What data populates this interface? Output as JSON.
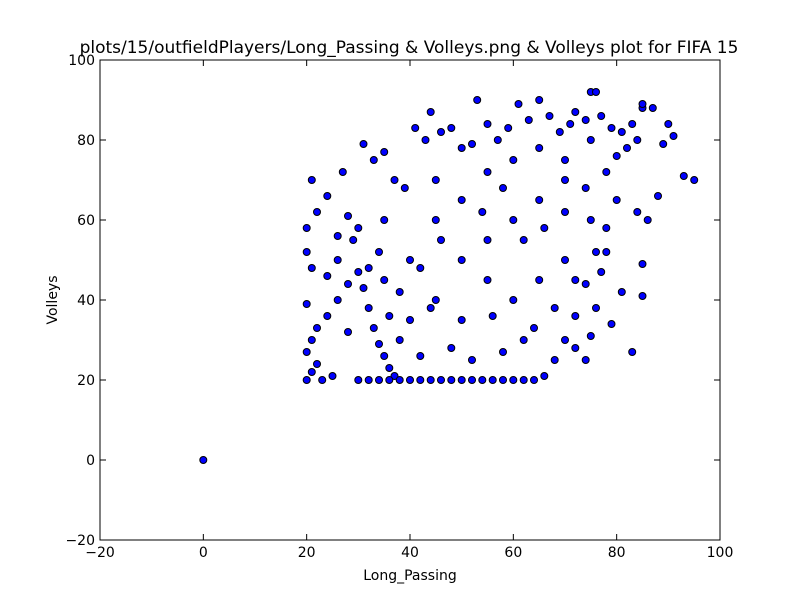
{
  "chart_data": {
    "type": "scatter",
    "title": "plots/15/outfieldPlayers/Long_Passing & Volleys.png & Volleys plot for FIFA 15",
    "xlabel": "Long_Passing",
    "ylabel": "Volleys",
    "xlim": [
      -20,
      100
    ],
    "ylim": [
      -20,
      100
    ],
    "xticks": [
      "−20",
      "0",
      "20",
      "40",
      "60",
      "80",
      "100"
    ],
    "yticks": [
      "−20",
      "0",
      "20",
      "40",
      "60",
      "80",
      "100"
    ],
    "grid": false,
    "marker_color": "#0000ff",
    "marker_edge": "#000000",
    "series": [
      {
        "points": [
          [
            0,
            0
          ],
          [
            20,
            20
          ],
          [
            21,
            22
          ],
          [
            22,
            24
          ],
          [
            20,
            27
          ],
          [
            21,
            30
          ],
          [
            22,
            33
          ],
          [
            20,
            39
          ],
          [
            21,
            48
          ],
          [
            20,
            52
          ],
          [
            20,
            58
          ],
          [
            21,
            70
          ],
          [
            22,
            62
          ],
          [
            24,
            66
          ],
          [
            23,
            20
          ],
          [
            25,
            21
          ],
          [
            26,
            40
          ],
          [
            24,
            36
          ],
          [
            27,
            72
          ],
          [
            28,
            61
          ],
          [
            29,
            55
          ],
          [
            30,
            47
          ],
          [
            31,
            43
          ],
          [
            32,
            38
          ],
          [
            33,
            33
          ],
          [
            34,
            29
          ],
          [
            35,
            26
          ],
          [
            36,
            23
          ],
          [
            37,
            21
          ],
          [
            30,
            20
          ],
          [
            32,
            20
          ],
          [
            34,
            20
          ],
          [
            36,
            20
          ],
          [
            38,
            20
          ],
          [
            40,
            20
          ],
          [
            42,
            20
          ],
          [
            44,
            20
          ],
          [
            46,
            20
          ],
          [
            48,
            20
          ],
          [
            50,
            20
          ],
          [
            52,
            20
          ],
          [
            54,
            20
          ],
          [
            56,
            20
          ],
          [
            58,
            20
          ],
          [
            60,
            20
          ],
          [
            62,
            20
          ],
          [
            64,
            20
          ],
          [
            66,
            21
          ],
          [
            31,
            79
          ],
          [
            33,
            75
          ],
          [
            35,
            77
          ],
          [
            37,
            70
          ],
          [
            39,
            68
          ],
          [
            41,
            83
          ],
          [
            43,
            80
          ],
          [
            44,
            87
          ],
          [
            46,
            82
          ],
          [
            48,
            83
          ],
          [
            50,
            78
          ],
          [
            52,
            79
          ],
          [
            53,
            90
          ],
          [
            55,
            84
          ],
          [
            57,
            80
          ],
          [
            59,
            83
          ],
          [
            61,
            89
          ],
          [
            63,
            85
          ],
          [
            65,
            90
          ],
          [
            67,
            86
          ],
          [
            69,
            82
          ],
          [
            71,
            84
          ],
          [
            72,
            87
          ],
          [
            74,
            85
          ],
          [
            75,
            92
          ],
          [
            76,
            92
          ],
          [
            77,
            86
          ],
          [
            79,
            83
          ],
          [
            81,
            82
          ],
          [
            83,
            84
          ],
          [
            85,
            88
          ],
          [
            85,
            89
          ],
          [
            87,
            88
          ],
          [
            89,
            79
          ],
          [
            90,
            84
          ],
          [
            91,
            81
          ],
          [
            93,
            71
          ],
          [
            95,
            70
          ],
          [
            88,
            66
          ],
          [
            86,
            60
          ],
          [
            84,
            62
          ],
          [
            85,
            49
          ],
          [
            85,
            41
          ],
          [
            83,
            27
          ],
          [
            81,
            42
          ],
          [
            79,
            34
          ],
          [
            78,
            52
          ],
          [
            77,
            47
          ],
          [
            76,
            38
          ],
          [
            75,
            31
          ],
          [
            74,
            25
          ],
          [
            72,
            28
          ],
          [
            45,
            60
          ],
          [
            45,
            40
          ],
          [
            50,
            50
          ],
          [
            55,
            55
          ],
          [
            60,
            60
          ],
          [
            55,
            45
          ],
          [
            50,
            35
          ],
          [
            60,
            40
          ],
          [
            65,
            65
          ],
          [
            65,
            45
          ],
          [
            70,
            70
          ],
          [
            70,
            50
          ],
          [
            40,
            50
          ],
          [
            40,
            35
          ],
          [
            35,
            45
          ],
          [
            35,
            60
          ],
          [
            45,
            70
          ],
          [
            50,
            65
          ],
          [
            55,
            72
          ],
          [
            60,
            75
          ],
          [
            65,
            78
          ],
          [
            70,
            75
          ],
          [
            75,
            80
          ],
          [
            75,
            60
          ],
          [
            72,
            45
          ],
          [
            68,
            38
          ],
          [
            62,
            30
          ],
          [
            58,
            27
          ],
          [
            52,
            25
          ],
          [
            48,
            28
          ],
          [
            42,
            26
          ],
          [
            38,
            30
          ],
          [
            28,
            32
          ],
          [
            26,
            50
          ],
          [
            30,
            58
          ],
          [
            34,
            52
          ],
          [
            38,
            42
          ],
          [
            42,
            48
          ],
          [
            46,
            55
          ],
          [
            54,
            62
          ],
          [
            58,
            68
          ],
          [
            62,
            55
          ],
          [
            66,
            58
          ],
          [
            70,
            62
          ],
          [
            74,
            68
          ],
          [
            78,
            72
          ],
          [
            80,
            76
          ],
          [
            82,
            78
          ],
          [
            84,
            80
          ],
          [
            80,
            65
          ],
          [
            78,
            58
          ],
          [
            76,
            52
          ],
          [
            74,
            44
          ],
          [
            72,
            36
          ],
          [
            70,
            30
          ],
          [
            68,
            25
          ],
          [
            64,
            33
          ],
          [
            56,
            36
          ],
          [
            44,
            38
          ],
          [
            36,
            36
          ],
          [
            32,
            48
          ],
          [
            28,
            44
          ],
          [
            26,
            56
          ],
          [
            24,
            46
          ]
        ]
      }
    ]
  }
}
